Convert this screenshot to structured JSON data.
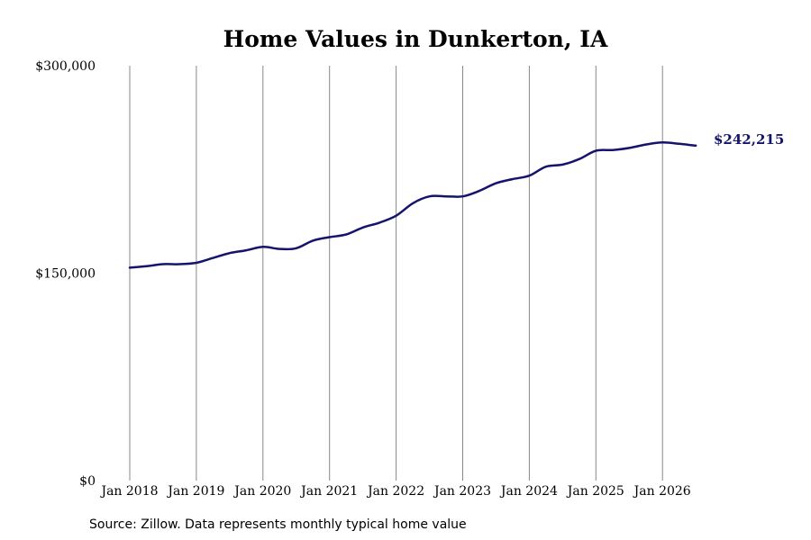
{
  "chart_data": {
    "type": "line",
    "title": "Home Values in Dunkerton, IA",
    "source": "Source: Zillow. Data represents monthly typical home value",
    "ylim": [
      0,
      300000
    ],
    "yticks": [
      {
        "value": 0,
        "label": "$0"
      },
      {
        "value": 150000,
        "label": "$150,000"
      },
      {
        "value": 300000,
        "label": "$300,000"
      }
    ],
    "xticks": [
      "Jan 2018",
      "Jan 2019",
      "Jan 2020",
      "Jan 2021",
      "Jan 2022",
      "Jan 2023",
      "Jan 2024",
      "Jan 2025",
      "Jan 2026"
    ],
    "grid": "vertical",
    "line_color": "#14146e",
    "end_label": "$242,215",
    "series": [
      {
        "points": [
          [
            "2018-01",
            154000
          ],
          [
            "2018-04",
            155000
          ],
          [
            "2018-07",
            156500
          ],
          [
            "2018-10",
            156500
          ],
          [
            "2019-01",
            157500
          ],
          [
            "2019-04",
            161000
          ],
          [
            "2019-07",
            164500
          ],
          [
            "2019-10",
            166500
          ],
          [
            "2020-01",
            169000
          ],
          [
            "2020-04",
            167500
          ],
          [
            "2020-07",
            168000
          ],
          [
            "2020-10",
            173500
          ],
          [
            "2021-01",
            176000
          ],
          [
            "2021-04",
            178000
          ],
          [
            "2021-07",
            183000
          ],
          [
            "2021-10",
            186500
          ],
          [
            "2022-01",
            191500
          ],
          [
            "2022-04",
            200500
          ],
          [
            "2022-07",
            205500
          ],
          [
            "2022-10",
            205500
          ],
          [
            "2023-01",
            205500
          ],
          [
            "2023-04",
            209500
          ],
          [
            "2023-07",
            215000
          ],
          [
            "2023-10",
            218000
          ],
          [
            "2024-01",
            220500
          ],
          [
            "2024-04",
            227000
          ],
          [
            "2024-07",
            228500
          ],
          [
            "2024-10",
            232500
          ],
          [
            "2025-01",
            238500
          ],
          [
            "2025-04",
            239000
          ],
          [
            "2025-07",
            240500
          ],
          [
            "2025-10",
            243000
          ],
          [
            "2026-01",
            244500
          ],
          [
            "2026-04",
            243500
          ],
          [
            "2026-07",
            242215
          ]
        ]
      }
    ]
  }
}
